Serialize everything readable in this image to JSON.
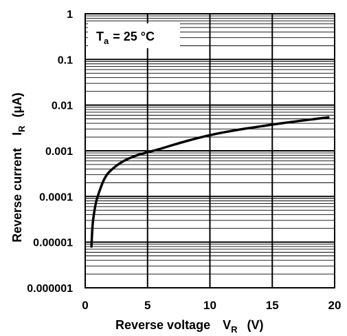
{
  "chart_data": {
    "type": "line",
    "x_axis": {
      "label": "Reverse voltage",
      "symbol_main": "V",
      "symbol_sub": "R",
      "unit": "(V)",
      "range": [
        0,
        20
      ],
      "ticks": [
        0,
        5,
        10,
        15,
        20
      ],
      "tick_labels": [
        "0",
        "5",
        "10",
        "15",
        "20"
      ]
    },
    "y_axis": {
      "label": "Reverse current",
      "symbol_main": "I",
      "symbol_sub": "R",
      "unit": "(μA)",
      "scale": "log",
      "range": [
        1e-06,
        1
      ],
      "ticks": [
        1e-06,
        1e-05,
        0.0001,
        0.001,
        0.01,
        0.1,
        1
      ],
      "tick_labels": [
        "0.000001",
        "0.00001",
        "0.0001",
        "0.001",
        "0.01",
        "0.1",
        "1"
      ]
    },
    "grid": true,
    "annotation": {
      "main": "T",
      "sub": "a",
      "rest": "= 25 °C"
    },
    "series": [
      {
        "x": [
          0.5,
          0.6,
          0.8,
          1.0,
          1.5,
          2.0,
          3.0,
          4.0,
          5.0,
          6.0,
          8.0,
          10.0,
          12.0,
          14.0,
          16.0,
          18.0,
          19.5
        ],
        "y": [
          8e-06,
          2.5e-05,
          6e-05,
          0.0001,
          0.00023,
          0.00036,
          0.00058,
          0.00077,
          0.00093,
          0.0011,
          0.0016,
          0.0022,
          0.0028,
          0.0034,
          0.0041,
          0.0048,
          0.0054
        ]
      }
    ]
  }
}
